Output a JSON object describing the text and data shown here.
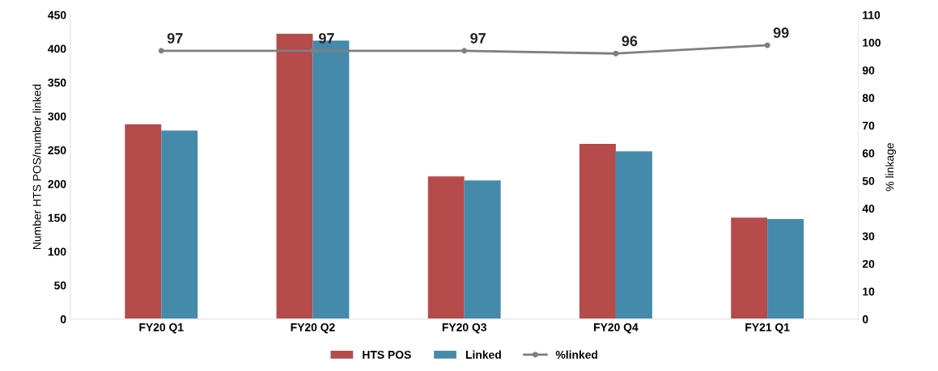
{
  "chart_data": {
    "type": "bar",
    "ylabel": "Number HTS POS/number linked",
    "y2label": "% linkage",
    "categories": [
      "FY20 Q1",
      "FY20 Q2",
      "FY20 Q3",
      "FY20 Q4",
      "FY21 Q1"
    ],
    "series": [
      {
        "name": "HTS POS",
        "color": "#b54b4b",
        "values": [
          288,
          422,
          211,
          259,
          150
        ]
      },
      {
        "name": "Linked",
        "color": "#458aaa",
        "values": [
          279,
          412,
          205,
          248,
          148
        ]
      },
      {
        "name": "%linked",
        "type": "line",
        "axis": "y2",
        "color": "#7f7f7f",
        "marker": "circle",
        "data_labels": true,
        "values": [
          97,
          97,
          97,
          96,
          99
        ]
      }
    ],
    "ylim": [
      0,
      450
    ],
    "yticks": [
      0,
      50,
      100,
      150,
      200,
      250,
      300,
      350,
      400,
      450
    ],
    "y2lim": [
      0,
      110
    ],
    "y2ticks": [
      0,
      10,
      20,
      30,
      40,
      50,
      60,
      70,
      80,
      90,
      100,
      110
    ],
    "grid": false,
    "legend": "bottom"
  }
}
